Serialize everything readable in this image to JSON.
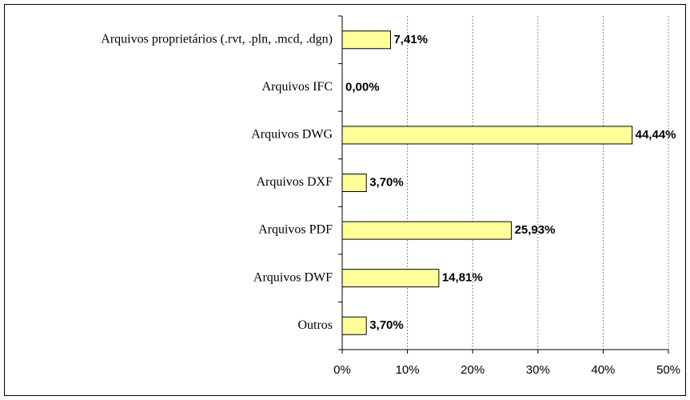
{
  "chart_data": {
    "type": "bar",
    "orientation": "horizontal",
    "categories": [
      "Arquivos proprietários (.rvt, .pln, .mcd, .dgn)",
      "Arquivos IFC",
      "Arquivos DWG",
      "Arquivos DXF",
      "Arquivos PDF",
      "Arquivos DWF",
      "Outros"
    ],
    "values": [
      7.41,
      0,
      44.44,
      3.7,
      25.93,
      14.81,
      3.7
    ],
    "value_labels": [
      "7,41%",
      "0,00%",
      "44,44%",
      "3,70%",
      "25,93%",
      "14,81%",
      "3,70%"
    ],
    "color": "#ffff99",
    "xlim": [
      0,
      50
    ],
    "xticks": [
      {
        "value": 0,
        "label": "0%"
      },
      {
        "value": 10,
        "label": "10%"
      },
      {
        "value": 20,
        "label": "20%"
      },
      {
        "value": 30,
        "label": "30%"
      },
      {
        "value": 40,
        "label": "40%"
      },
      {
        "value": 50,
        "label": "50%"
      }
    ],
    "grid": true
  }
}
